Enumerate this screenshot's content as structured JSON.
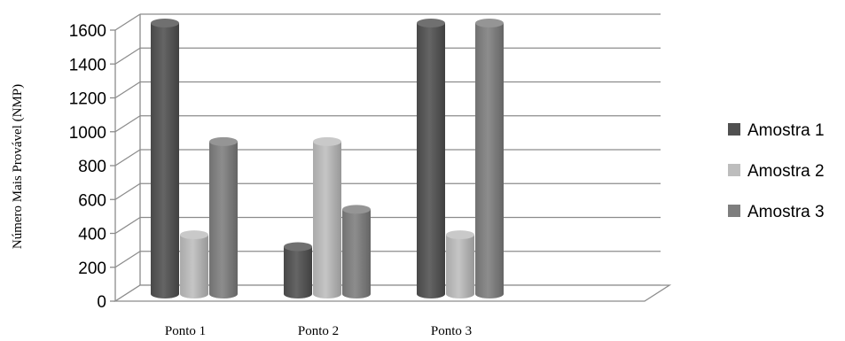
{
  "chart_data": {
    "type": "bar",
    "title": "",
    "xlabel": "",
    "ylabel": "Número Mais Provável (NMP)",
    "categories": [
      "Ponto 1",
      "Ponto 2",
      "Ponto 3"
    ],
    "ylim": [
      0,
      1600
    ],
    "yticks": [
      "0",
      "200",
      "400",
      "600",
      "800",
      "1000",
      "1200",
      "1400",
      "1600"
    ],
    "grid": true,
    "legend_position": "right",
    "series": [
      {
        "name": "Amostra 1",
        "values": [
          1600,
          280,
          1600
        ],
        "color": "#505050"
      },
      {
        "name": "Amostra 2",
        "values": [
          350,
          900,
          350
        ],
        "color": "#bdbdbd"
      },
      {
        "name": "Amostra 3",
        "values": [
          900,
          500,
          1600
        ],
        "color": "#7e7e7e"
      }
    ]
  }
}
